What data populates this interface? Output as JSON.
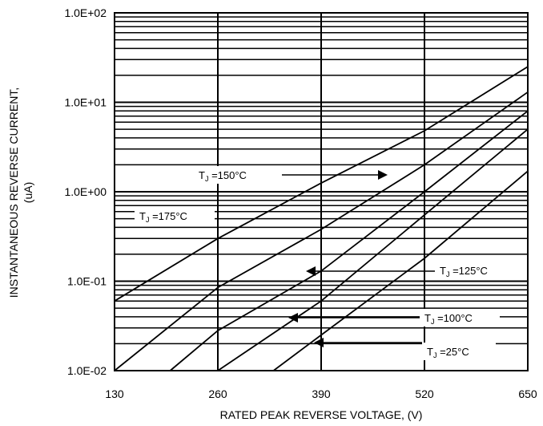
{
  "chart_data": {
    "type": "line",
    "xlabel": "RATED PEAK REVERSE VOLTAGE, (V)",
    "ylabel_line1": "INSTANTANEOUS REVERSE CURRENT,",
    "ylabel_line2": "(uA)",
    "y_scale": "log",
    "xlim": [
      130,
      650
    ],
    "ylim": [
      0.01,
      100
    ],
    "x_ticks": [
      {
        "value": 130,
        "label": "130"
      },
      {
        "value": 260,
        "label": "260"
      },
      {
        "value": 390,
        "label": "390"
      },
      {
        "value": 520,
        "label": "520"
      },
      {
        "value": 650,
        "label": "650"
      }
    ],
    "y_ticks": [
      {
        "value": 0.01,
        "label": "1.0E-02"
      },
      {
        "value": 0.1,
        "label": "1.0E-01"
      },
      {
        "value": 1,
        "label": "1.0E+00"
      },
      {
        "value": 10,
        "label": "1.0E+01"
      },
      {
        "value": 100,
        "label": "1.0E+02"
      }
    ],
    "grid": true,
    "series": [
      {
        "name": "T_J =175°C",
        "points": [
          [
            130,
            0.06
          ],
          [
            260,
            0.3
          ],
          [
            390,
            1.25
          ],
          [
            520,
            4.8
          ],
          [
            650,
            25
          ]
        ]
      },
      {
        "name": "T_J =150°C",
        "points": [
          [
            130,
            0.01
          ],
          [
            260,
            0.085
          ],
          [
            390,
            0.38
          ],
          [
            520,
            2.0
          ],
          [
            650,
            13
          ]
        ]
      },
      {
        "name": "T_J =125°C",
        "points": [
          [
            200,
            0.01
          ],
          [
            260,
            0.028
          ],
          [
            390,
            0.13
          ],
          [
            520,
            1.0
          ],
          [
            650,
            8
          ]
        ]
      },
      {
        "name": "T_J =100°C",
        "points": [
          [
            260,
            0.01
          ],
          [
            390,
            0.06
          ],
          [
            520,
            0.55
          ],
          [
            650,
            5
          ]
        ]
      },
      {
        "name": "T_J =25°C",
        "points": [
          [
            330,
            0.01
          ],
          [
            390,
            0.025
          ],
          [
            520,
            0.18
          ],
          [
            650,
            1.7
          ]
        ]
      }
    ],
    "annotations": [
      {
        "label": "T",
        "sub": "J",
        "rest": " =150°C",
        "series": "T_J =150°C",
        "side": "left"
      },
      {
        "label": "T",
        "sub": "J",
        "rest": " =175°C",
        "series": "T_J =175°C",
        "side": "left"
      },
      {
        "label": "T",
        "sub": "J",
        "rest": " =125°C",
        "series": "T_J =125°C",
        "side": "right"
      },
      {
        "label": "T",
        "sub": "J",
        "rest": " =100°C",
        "series": "T_J =100°C",
        "side": "right"
      },
      {
        "label": "T",
        "sub": "J",
        "rest": " =25°C",
        "series": "T_J =25°C",
        "side": "right"
      }
    ]
  }
}
